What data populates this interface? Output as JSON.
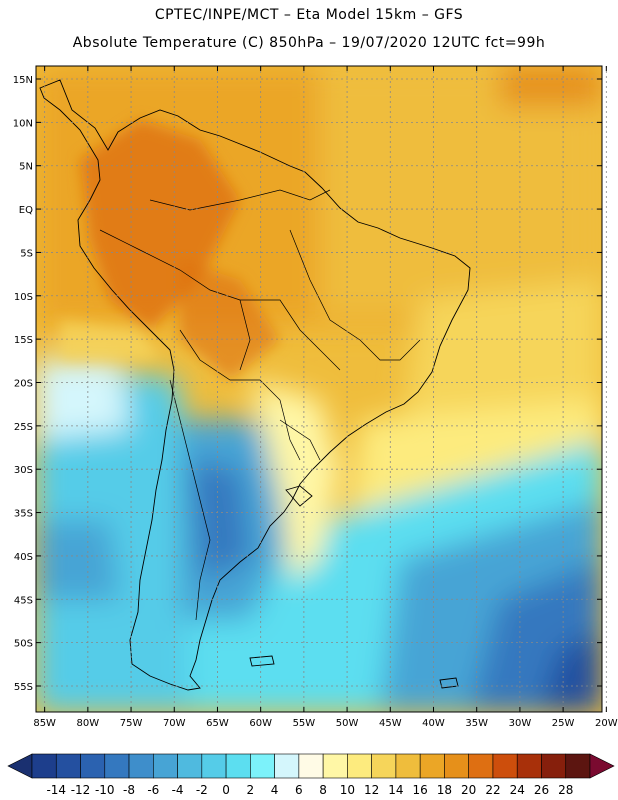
{
  "header": {
    "line1": "CPTEC/INPE/MCT –  Eta Model 15km – GFS",
    "line2": "Absolute Temperature (C) 850hPa – 19/07/2020 12UTC fct=99h"
  },
  "map": {
    "lat_labels": [
      "15N",
      "10N",
      "5N",
      "EQ",
      "5S",
      "10S",
      "15S",
      "20S",
      "25S",
      "30S",
      "35S",
      "40S",
      "45S",
      "50S",
      "55S"
    ],
    "lon_labels": [
      "85W",
      "80W",
      "75W",
      "70W",
      "65W",
      "60W",
      "55W",
      "50W",
      "45W",
      "40W",
      "35W",
      "30W",
      "25W",
      "20W"
    ],
    "lat_values": [
      15,
      10,
      5,
      0,
      -5,
      -10,
      -15,
      -20,
      -25,
      -30,
      -35,
      -40,
      -45,
      -50,
      -55
    ],
    "lon_values": [
      -85,
      -80,
      -75,
      -70,
      -65,
      -60,
      -55,
      -50,
      -45,
      -40,
      -35,
      -30,
      -25,
      -20
    ],
    "lat_range": [
      -58,
      16.5
    ],
    "lon_range": [
      -86,
      -20.5
    ]
  },
  "colorbar": {
    "labels": [
      "-14",
      "-12",
      "-10",
      "-8",
      "-6",
      "-4",
      "-2",
      "0",
      "2",
      "4",
      "6",
      "8",
      "10",
      "12",
      "14",
      "16",
      "18",
      "20",
      "22",
      "24",
      "26",
      "28"
    ],
    "colors": [
      "#1d3e8c",
      "#2450a0",
      "#2b62b0",
      "#3478bf",
      "#3e8ecb",
      "#47a4d5",
      "#4fbadf",
      "#55cce8",
      "#5cdef0",
      "#7cf2fa",
      "#d4f6fc",
      "#fffbe6",
      "#fff7a6",
      "#fdeb7e",
      "#f6d55a",
      "#efbd3c",
      "#eba626",
      "#e6901a",
      "#de6f12",
      "#cd4e0c",
      "#a8300a",
      "#861f0c",
      "#5c1510"
    ],
    "under_color": "#1a3070",
    "over_color": "#7a0a30"
  }
}
